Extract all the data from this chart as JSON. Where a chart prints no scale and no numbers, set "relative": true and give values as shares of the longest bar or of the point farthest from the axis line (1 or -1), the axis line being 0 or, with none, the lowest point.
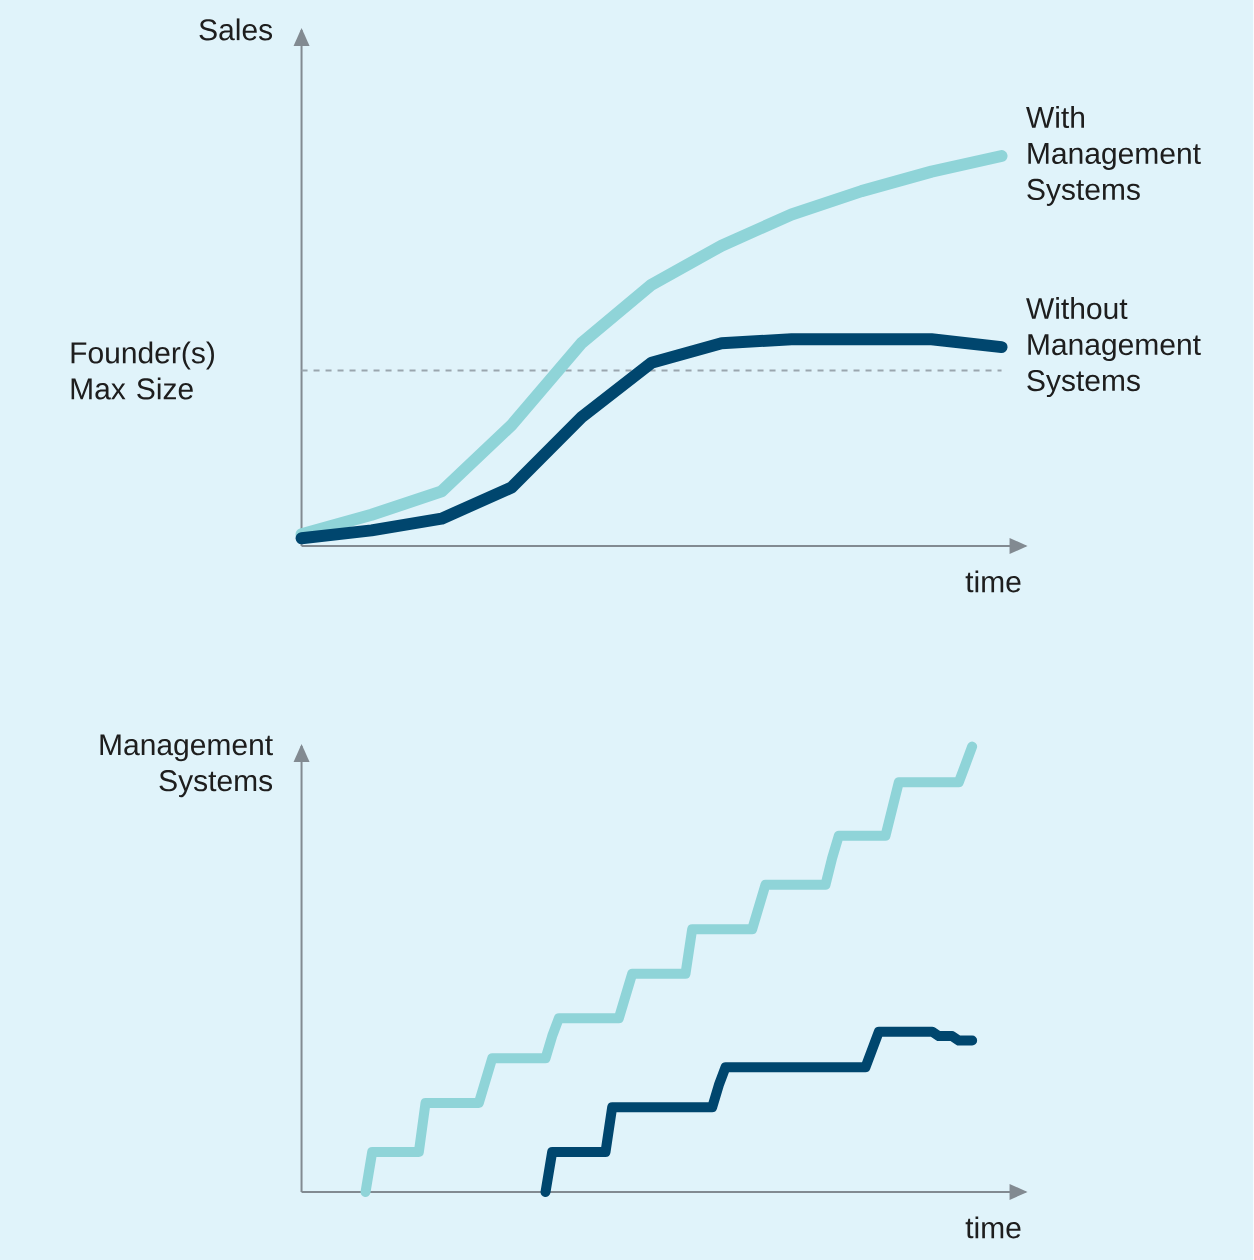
{
  "chart_data": [
    {
      "type": "line",
      "relative": true,
      "ylabel": "Sales",
      "xlabel": "time",
      "categories": [
        null,
        null,
        null,
        null,
        null,
        null,
        null,
        null,
        null,
        null,
        null
      ],
      "series": [
        {
          "name": "With Management Systems",
          "color": "#8fd4d8",
          "values": [
            0.03,
            0.08,
            0.14,
            0.31,
            0.52,
            0.67,
            0.77,
            0.85,
            0.91,
            0.96,
            1.0
          ]
        },
        {
          "name": "Without Management Systems",
          "color": "#00466e",
          "values": [
            0.02,
            0.04,
            0.07,
            0.15,
            0.33,
            0.47,
            0.52,
            0.53,
            0.53,
            0.53,
            0.51
          ]
        }
      ],
      "ref_lines": [
        {
          "axis": "y",
          "value": 0.45,
          "label": "Founder(s) Max Size",
          "color": "#9aa6ae",
          "line_style": "dashed"
        }
      ]
    },
    {
      "type": "line",
      "relative": true,
      "ylabel": "Management Systems",
      "xlabel": "time",
      "categories": [
        null,
        null,
        null,
        null,
        null,
        null,
        null,
        null,
        null,
        null,
        null,
        null,
        null,
        null,
        null,
        null,
        null,
        null,
        null,
        null,
        null,
        null,
        null,
        null,
        null,
        null,
        null,
        null,
        null,
        null,
        null,
        null,
        null,
        null,
        null,
        null,
        null,
        null,
        null,
        null,
        null,
        null,
        null,
        null,
        null,
        null,
        null,
        null,
        null,
        null,
        null,
        null,
        null,
        null,
        null,
        null,
        null,
        null,
        null,
        null,
        null,
        null,
        null,
        null,
        null,
        null,
        null,
        null,
        null,
        null,
        null,
        null,
        null,
        null,
        null,
        null,
        null,
        null,
        null,
        null,
        null,
        null,
        null,
        null,
        null,
        null,
        null,
        null,
        null,
        null,
        null,
        null,
        null,
        null,
        null,
        null,
        null,
        null,
        null,
        null,
        null
      ],
      "series": [
        {
          "color": "#8fd4d8",
          "values": [
            null,
            null,
            null,
            null,
            null,
            null,
            null,
            null,
            null,
            0.0,
            0.09,
            0.09,
            0.09,
            0.09,
            0.09,
            0.09,
            0.09,
            0.09,
            0.2,
            0.2,
            0.2,
            0.2,
            0.2,
            0.2,
            0.2,
            0.2,
            0.2,
            0.25,
            0.3,
            0.3,
            0.3,
            0.3,
            0.3,
            0.3,
            0.3,
            0.3,
            0.3,
            0.35,
            0.39,
            0.39,
            0.39,
            0.39,
            0.39,
            0.39,
            0.39,
            0.39,
            0.39,
            0.39,
            0.44,
            0.49,
            0.49,
            0.49,
            0.49,
            0.49,
            0.49,
            0.49,
            0.49,
            0.49,
            0.59,
            0.59,
            0.59,
            0.59,
            0.59,
            0.59,
            0.59,
            0.59,
            0.59,
            0.59,
            0.64,
            0.69,
            0.69,
            0.69,
            0.69,
            0.69,
            0.69,
            0.69,
            0.69,
            0.69,
            0.69,
            0.75,
            0.8,
            0.8,
            0.8,
            0.8,
            0.8,
            0.8,
            0.8,
            0.8,
            0.86,
            0.92,
            0.92,
            0.92,
            0.92,
            0.92,
            0.92,
            0.92,
            0.92,
            0.92,
            0.92,
            0.96,
            1.0
          ]
        },
        {
          "color": "#00466e",
          "values": [
            null,
            null,
            null,
            null,
            null,
            null,
            null,
            null,
            null,
            null,
            null,
            null,
            null,
            null,
            null,
            null,
            null,
            null,
            null,
            null,
            null,
            null,
            null,
            null,
            null,
            null,
            null,
            null,
            null,
            null,
            null,
            null,
            null,
            null,
            null,
            null,
            0.0,
            0.09,
            0.09,
            0.09,
            0.09,
            0.09,
            0.09,
            0.09,
            0.09,
            0.09,
            0.19,
            0.19,
            0.19,
            0.19,
            0.19,
            0.19,
            0.19,
            0.19,
            0.19,
            0.19,
            0.19,
            0.19,
            0.19,
            0.19,
            0.19,
            0.19,
            0.24,
            0.28,
            0.28,
            0.28,
            0.28,
            0.28,
            0.28,
            0.28,
            0.28,
            0.28,
            0.28,
            0.28,
            0.28,
            0.28,
            0.28,
            0.28,
            0.28,
            0.28,
            0.28,
            0.28,
            0.28,
            0.28,
            0.28,
            0.32,
            0.36,
            0.36,
            0.36,
            0.36,
            0.36,
            0.36,
            0.36,
            0.36,
            0.36,
            0.35,
            0.35,
            0.35,
            0.34,
            0.34,
            0.34
          ]
        }
      ]
    }
  ]
}
